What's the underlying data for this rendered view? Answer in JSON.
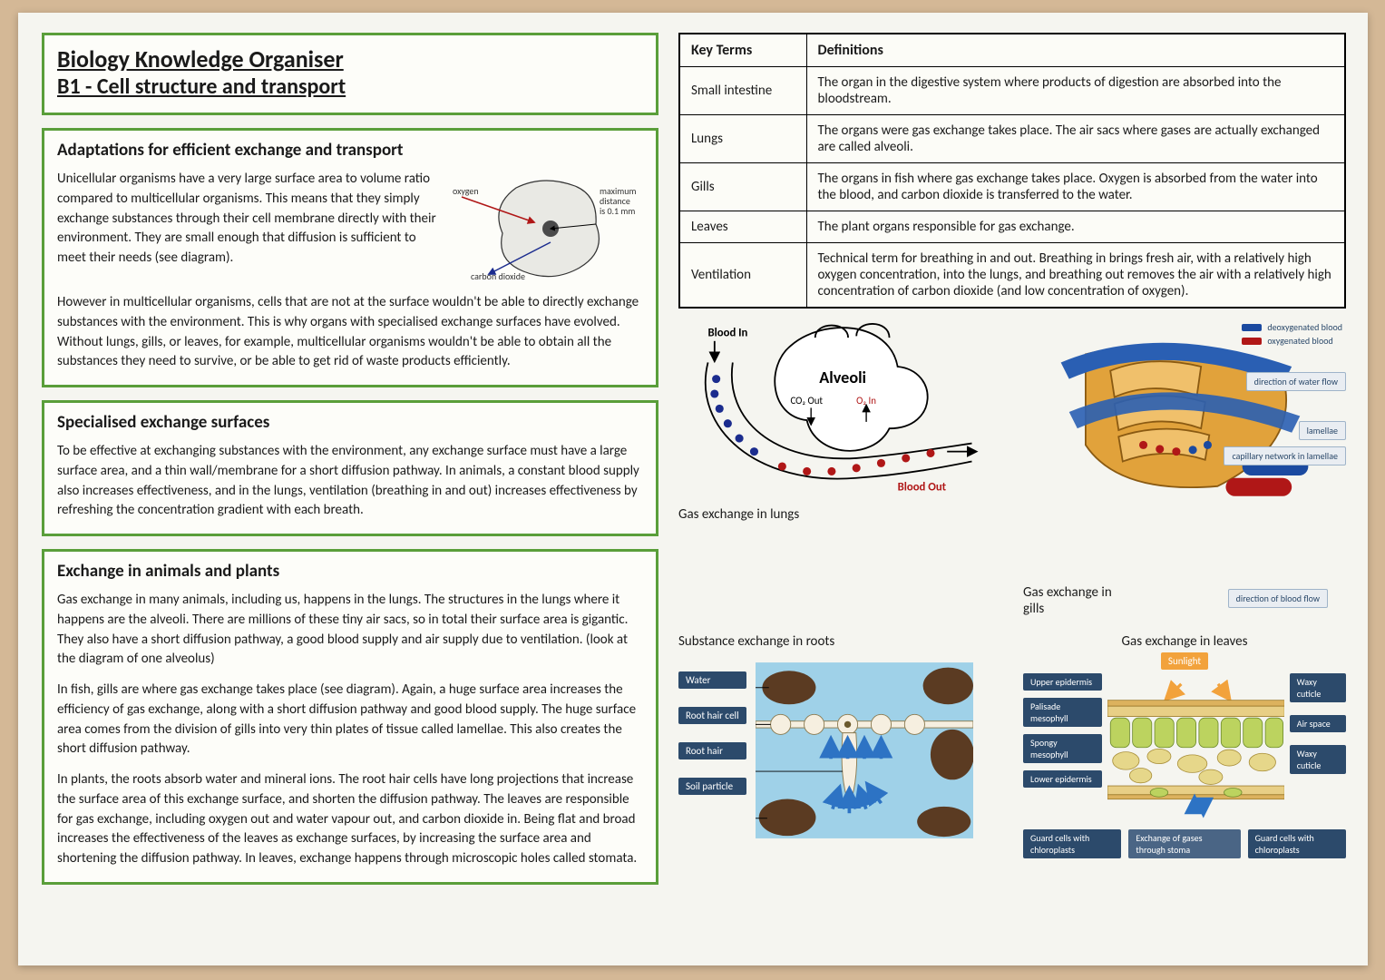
{
  "title_line1": "Biology Knowledge Organiser",
  "title_line2": "B1 - Cell structure and transport",
  "section1": {
    "heading": "Adaptations for efficient exchange and transport",
    "p1": "Unicellular organisms have a very large surface area to volume ratio compared to multicellular organisms. This means that they simply exchange substances through their cell membrane directly with their environment. They are small enough that diffusion is sufficient to meet their needs (see diagram).",
    "p2": "However in multicellular organisms, cells that are not at the surface wouldn't be able to directly exchange substances with the environment. This is why organs with specialised exchange surfaces have evolved. Without lungs, gills, or leaves, for example, multicellular organisms wouldn't be able to obtain all the substances they need to survive, or be able to get rid of waste products efficiently.",
    "diagram_labels": {
      "oxygen": "oxygen",
      "co2": "carbon dioxide",
      "dist1": "maximum",
      "dist2": "distance",
      "dist3": "is 0.1 mm"
    }
  },
  "section2": {
    "heading": "Specialised exchange surfaces",
    "p1": "To be effective at exchanging substances with the environment, any exchange surface must have a large surface area, and a thin wall/membrane for a short diffusion pathway. In animals, a constant blood supply also increases effectiveness, and in the lungs, ventilation (breathing in and out) increases effectiveness by refreshing the concentration gradient with each breath."
  },
  "section3": {
    "heading": "Exchange in animals and plants",
    "p1": "Gas exchange in many animals, including us, happens in the lungs. The structures in the lungs where it happens are the alveoli. There are millions of these tiny air sacs, so in total their surface area is gigantic. They also have a short diffusion pathway, a good blood supply and air supply due to ventilation. (look at the diagram of one alveolus)",
    "p2": "In fish, gills are where gas exchange takes place (see diagram). Again, a huge surface area increases the efficiency of gas exchange, along with a short diffusion pathway and good blood supply. The huge surface area comes from the division of gills into very thin plates of tissue called lamellae. This also creates the short diffusion pathway.",
    "p3": "In plants, the roots absorb water and mineral ions. The root hair cells have long projections that increase the surface area of this exchange surface, and shorten the diffusion pathway. The leaves are responsible for gas exchange, including oxygen out and water vapour out, and carbon dioxide in. Being flat and broad increases the effectiveness of the leaves as exchange surfaces, by increasing the surface area and shortening the diffusion pathway. In leaves, exchange happens through microscopic holes called stomata."
  },
  "keyterms": {
    "col1": "Key Terms",
    "col2": "Definitions",
    "rows": [
      {
        "term": "Small intestine",
        "def": "The organ in the digestive system where products of digestion are absorbed into the bloodstream."
      },
      {
        "term": "Lungs",
        "def": "The organs were gas exchange takes place. The air sacs where gases are actually exchanged are called alveoli."
      },
      {
        "term": "Gills",
        "def": "The organs in fish where gas exchange takes place. Oxygen is absorbed from the water into the blood, and carbon dioxide is transferred to the water."
      },
      {
        "term": "Leaves",
        "def": "The plant organs responsible for gas exchange."
      },
      {
        "term": "Ventilation",
        "def": "Technical term for breathing in and out. Breathing in brings fresh air, with a relatively high oxygen concentration, into the lungs, and breathing out removes the air with a relatively high concentration of carbon dioxide (and low concentration of oxygen)."
      }
    ]
  },
  "diagrams": {
    "alveoli": {
      "caption": "Gas exchange in lungs",
      "blood_in": "Blood In",
      "blood_out": "Blood Out",
      "alveoli": "Alveoli",
      "co2": "CO₂ Out",
      "o2": "O₂ In",
      "colors": {
        "artery": "#b01717",
        "vein": "#1b2c8e",
        "outline": "#000"
      }
    },
    "gills": {
      "caption": "Gas exchange in gills",
      "deoxy": "deoxygenated blood",
      "oxy": "oxygenated blood",
      "waterflow": "direction of water flow",
      "lamellae": "lamellae",
      "capnet": "capillary network in lamellae",
      "bloodflow": "direction of blood flow",
      "colors": {
        "water": "#2a5fb3",
        "blood_oxy": "#b01717",
        "blood_deoxy": "#1b4aa0",
        "gill": "#e1a23b"
      }
    },
    "roots": {
      "caption": "Substance exchange in roots",
      "labels": {
        "water": "Water",
        "roothaircell": "Root hair cell",
        "roothair": "Root hair",
        "soil": "Soil particle"
      },
      "colors": {
        "water": "#9fd1e8",
        "soil": "#5b3b22",
        "root": "#f6efe0",
        "arrow": "#2d73c4",
        "label_bg": "#2c4a6b"
      }
    },
    "leaf": {
      "caption": "Gas exchange in leaves",
      "sunlight": "Sunlight",
      "labels": {
        "upper": "Upper epidermis",
        "palisade": "Palisade mesophyll",
        "spongy": "Spongy mesophyll",
        "lower": "Lower epidermis",
        "guard": "Guard cells with chloroplasts",
        "exchange": "Exchange of gases through stoma",
        "waxy": "Waxy cuticle",
        "air": "Air space"
      },
      "colors": {
        "cuticle": "#dcb25e",
        "palisade": "#bcd35f",
        "spongy": "#e6d78a",
        "epidermis": "#e8cf86",
        "arrow": "#2d73c4",
        "sun": "#f2a23c",
        "label_bg": "#2c4a6b"
      }
    }
  },
  "style": {
    "border_green": "#5a9e3a",
    "paper_bg": "#f5f5f0",
    "desk_bg": "#d4b896",
    "font": "Calibri"
  }
}
